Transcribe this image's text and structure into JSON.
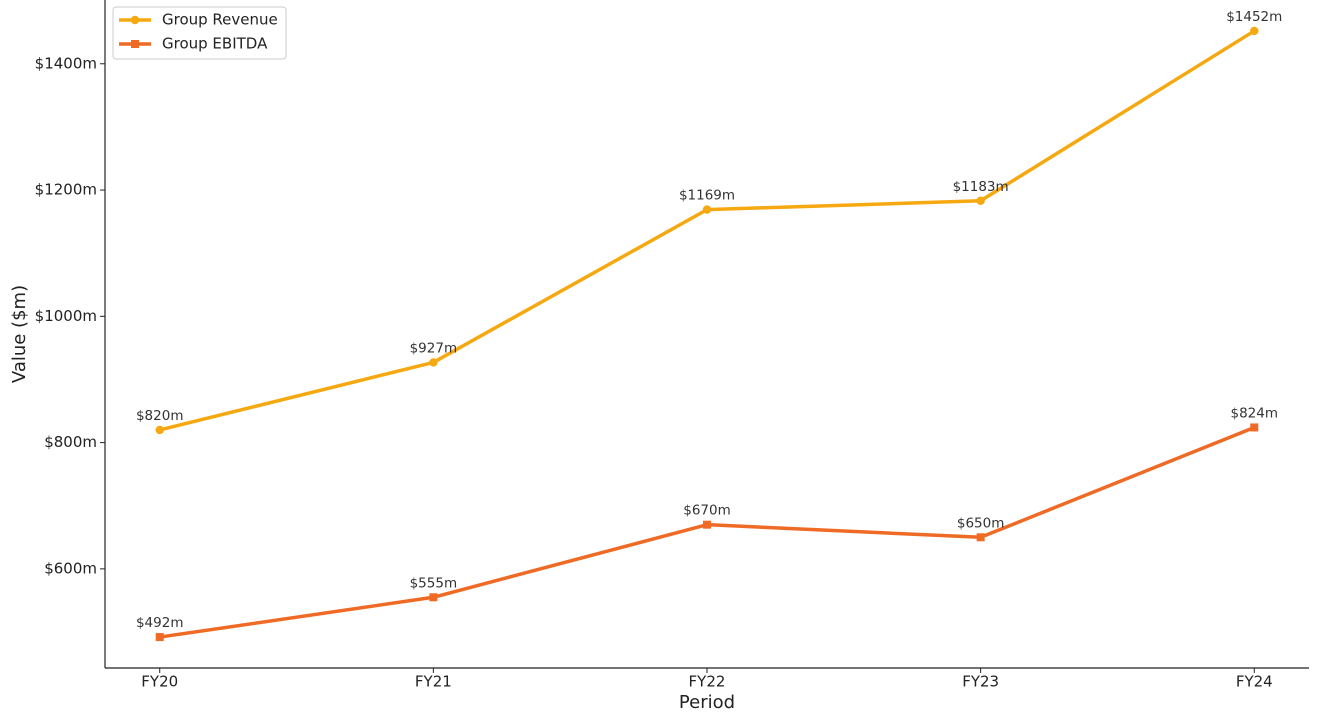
{
  "chart_data": {
    "type": "line",
    "x_label": "Period",
    "y_label": "Value ($m)",
    "categories": [
      "FY20",
      "FY21",
      "FY22",
      "FY23",
      "FY24"
    ],
    "series": [
      {
        "name": "Group Revenue",
        "color": "#f5a80f",
        "marker": "circle",
        "values": [
          820,
          927,
          1169,
          1183,
          1452
        ],
        "value_labels": [
          "$820m",
          "$927m",
          "$1169m",
          "$1183m",
          "$1452m"
        ]
      },
      {
        "name": "Group EBITDA",
        "color": "#ef6a24",
        "marker": "square",
        "values": [
          492,
          555,
          670,
          650,
          824
        ],
        "value_labels": [
          "$492m",
          "$555m",
          "$670m",
          "$650m",
          "$824m"
        ]
      }
    ],
    "ylim": [
      443,
      1501
    ],
    "yticks": [
      {
        "value": 600,
        "label": "$600m"
      },
      {
        "value": 800,
        "label": "$800m"
      },
      {
        "value": 1000,
        "label": "$1000m"
      },
      {
        "value": 1200,
        "label": "$1200m"
      },
      {
        "value": 1400,
        "label": "$1400m"
      }
    ],
    "legend": "upper left"
  }
}
